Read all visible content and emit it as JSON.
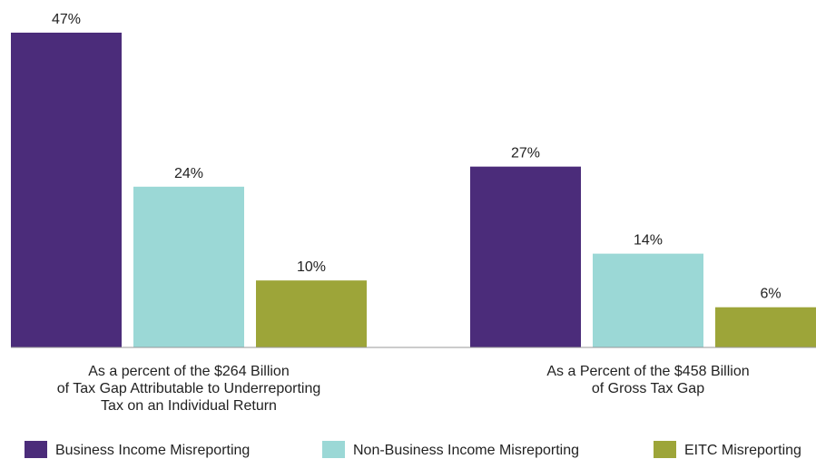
{
  "chart_data": {
    "type": "bar",
    "categories": [
      "As a percent of the $264 Billion\nof Tax Gap Attributable to Underreporting\nTax on an Individual Return",
      "As a Percent of the $458 Billion\nof Gross Tax Gap"
    ],
    "series": [
      {
        "name": "Business Income Misreporting",
        "color": "#4b2c7a",
        "values": [
          47,
          27
        ],
        "value_labels": [
          "47%",
          "27%"
        ]
      },
      {
        "name": "Non-Business Income Misreporting",
        "color": "#9bd8d6",
        "values": [
          24,
          14
        ],
        "value_labels": [
          "24%",
          "14%"
        ]
      },
      {
        "name": "EITC Misreporting",
        "color": "#9da539",
        "values": [
          10,
          6
        ],
        "value_labels": [
          "10%",
          "6%"
        ]
      }
    ],
    "legend": "bottom"
  }
}
